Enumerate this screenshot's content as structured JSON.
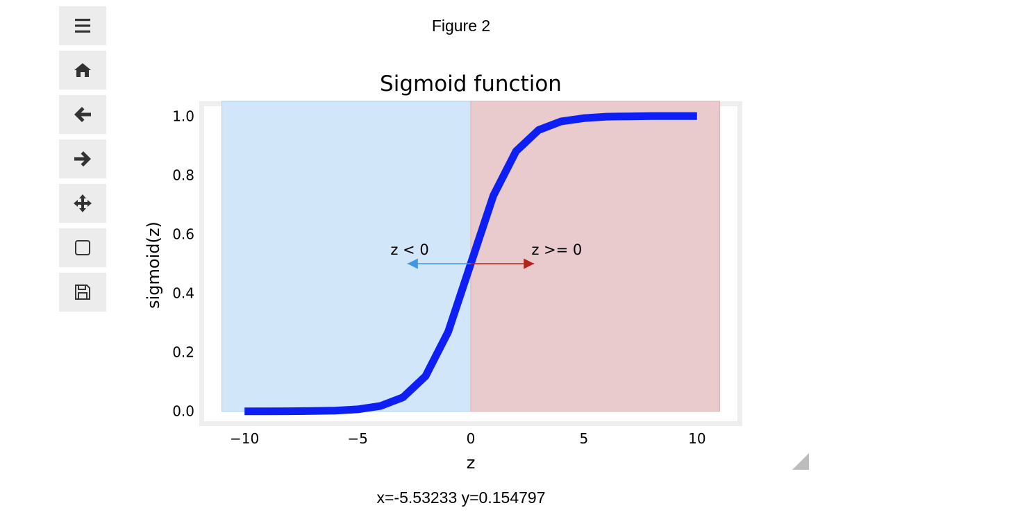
{
  "figure": {
    "title": "Figure 2"
  },
  "toolbar": {
    "buttons": [
      {
        "name": "menu-button",
        "icon": "hamburger-menu-icon"
      },
      {
        "name": "home-button",
        "icon": "home-icon"
      },
      {
        "name": "back-button",
        "icon": "arrow-left-icon"
      },
      {
        "name": "forward-button",
        "icon": "arrow-right-icon"
      },
      {
        "name": "pan-button",
        "icon": "move-arrows-icon"
      },
      {
        "name": "zoom-rect-button",
        "icon": "square-icon"
      },
      {
        "name": "save-button",
        "icon": "floppy-disk-icon"
      }
    ]
  },
  "status": {
    "coords": "x=-5.53233 y=0.154797"
  },
  "chart_data": {
    "type": "line",
    "title": "Sigmoid function",
    "xlabel": "z",
    "ylabel": "sigmoid(z)",
    "xlim": [
      -12,
      12
    ],
    "ylim": [
      -0.05,
      1.05
    ],
    "xticks": [
      -10,
      -5,
      0,
      5,
      10
    ],
    "xtick_labels": [
      "−10",
      "−5",
      "0",
      "5",
      "10"
    ],
    "yticks": [
      0.0,
      0.2,
      0.4,
      0.6,
      0.8,
      1.0
    ],
    "ytick_labels": [
      "0.0",
      "0.2",
      "0.4",
      "0.6",
      "0.8",
      "1.0"
    ],
    "grid": false,
    "series": [
      {
        "color": "#0d1ff5",
        "x": [
          -10,
          -9,
          -8,
          -7,
          -6,
          -5,
          -4,
          -3,
          -2,
          -1,
          0,
          1,
          2,
          3,
          4,
          5,
          6,
          7,
          8,
          9,
          10
        ],
        "y": [
          4.54e-05,
          0.000123,
          0.000335,
          0.000911,
          0.00247,
          0.00669,
          0.018,
          0.0474,
          0.119,
          0.269,
          0.5,
          0.731,
          0.881,
          0.953,
          0.982,
          0.993,
          0.998,
          0.999,
          1.0,
          1.0,
          1.0
        ]
      }
    ],
    "regions": [
      {
        "x0": -11,
        "x1": 0,
        "y0": 0,
        "y1": 1.05,
        "color": "#d1e6f8",
        "edge": "#a9cff0"
      },
      {
        "x0": 0,
        "x1": 11,
        "y0": 0,
        "y1": 1.05,
        "color": "#eacbcd",
        "edge": "#dcaeb2"
      }
    ],
    "annotations": [
      {
        "text": "z < 0",
        "x": -2.7,
        "y": 0.53,
        "arrow_from": [
          0,
          0.5
        ],
        "arrow_to": [
          -2.8,
          0.5
        ],
        "color": "#3c97e8"
      },
      {
        "text": "z >= 0",
        "x": 3.8,
        "y": 0.53,
        "arrow_from": [
          0,
          0.5
        ],
        "arrow_to": [
          2.8,
          0.5
        ],
        "color": "#b3251a"
      }
    ]
  }
}
